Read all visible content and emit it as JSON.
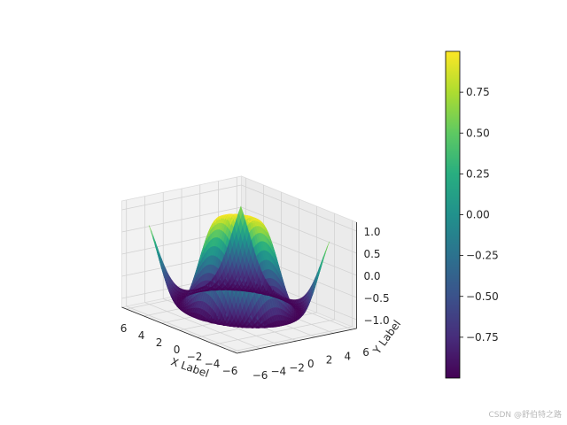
{
  "chart_data": {
    "type": "surface3d",
    "function": "z = sin(sqrt(x^2 + y^2))",
    "x_range": [
      -5,
      5
    ],
    "y_range": [
      -5,
      5
    ],
    "z_range": [
      -1,
      1
    ],
    "xlabel": "X Label",
    "ylabel": "Y Label",
    "zlabel": "",
    "colormap": "viridis",
    "x_ticks": [
      "−6",
      "−4",
      "−2",
      "0",
      "2",
      "4",
      "6"
    ],
    "y_ticks": [
      "−6",
      "−4",
      "−2",
      "0",
      "2",
      "4",
      "6"
    ],
    "z_ticks": [
      "−1.0",
      "−0.5",
      "0.0",
      "0.5",
      "1.0"
    ],
    "colorbar": {
      "ticks": [
        "−0.75",
        "−0.50",
        "−0.25",
        "0.00",
        "0.25",
        "0.50",
        "0.75"
      ],
      "range": [
        -1,
        1
      ]
    },
    "grid": true
  },
  "watermark": "CSDN @舒伯特之路"
}
